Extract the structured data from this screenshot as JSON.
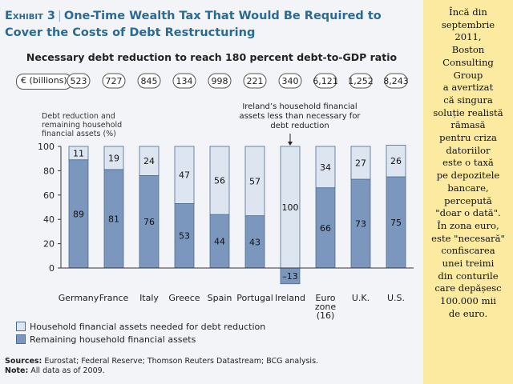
{
  "header": {
    "exhibit_label": "Exhibit 3",
    "title": "One-Time Wealth Tax That Would Be Required to Cover the Costs of Debt Restructuring"
  },
  "chart_data": {
    "type": "bar",
    "stacked": true,
    "title": "Necessary debt reduction to reach 180 percent debt-to-GDP ratio",
    "ylabel": "Debt reduction and remaining household financial assets (%)",
    "ylim": [
      -13,
      100
    ],
    "yticks": [
      "0",
      "20",
      "40",
      "60",
      "80",
      "100"
    ],
    "debt_row_label": "€ (billions)",
    "categories": [
      "Germany",
      "France",
      "Italy",
      "Greece",
      "Spain",
      "Portugal",
      "Ireland",
      "Euro zone (16)",
      "U.K.",
      "U.S."
    ],
    "category_labels": [
      [
        "Germany"
      ],
      [
        "France"
      ],
      [
        "Italy"
      ],
      [
        "Greece"
      ],
      [
        "Spain"
      ],
      [
        "Portugal"
      ],
      [
        "Ireland"
      ],
      [
        "Euro",
        "zone",
        "(16)"
      ],
      [
        "U.K."
      ],
      [
        "U.S."
      ]
    ],
    "debt_reduction_billions": [
      "523",
      "727",
      "845",
      "134",
      "998",
      "221",
      "340",
      "6,121",
      "1,252",
      "8,243"
    ],
    "series": [
      {
        "name": "Remaining household financial assets",
        "values": [
          89,
          81,
          76,
          53,
          44,
          43,
          -13,
          66,
          73,
          75
        ],
        "labels": [
          "89",
          "81",
          "76",
          "53",
          "44",
          "43",
          "–13",
          "66",
          "73",
          "75"
        ],
        "color": "#7b97bd"
      },
      {
        "name": "Household financial assets needed for debt reduction",
        "values": [
          11,
          19,
          24,
          47,
          56,
          57,
          100,
          34,
          27,
          26
        ],
        "labels": [
          "11",
          "19",
          "24",
          "47",
          "56",
          "57",
          "100",
          "34",
          "27",
          "26"
        ],
        "color": "#dde5f1"
      }
    ],
    "annotation": "Ireland’s household financial assets less than necessary for debt reduction",
    "legend_position": "bottom-left",
    "grid": false
  },
  "sources": {
    "sources_label": "Sources:",
    "sources_text": "Eurostat; Federal Reserve; Thomson Reuters Datastream; BCG analysis.",
    "note_label": "Note:",
    "note_text": "All data as of 2009."
  },
  "side_note": {
    "text": "Încă din septembrie 2011, Boston Consulting Group a avertizat că singura soluție realistă rămasă pentru criza datoriilor este o taxă pe depozitele bancare, percepută \"doar o dată\". În zona euro, este \"necesară\" confiscarea unei treimi din conturile care depășesc 100.000 mii de euro.",
    "lines": [
      "Încă din",
      "septembrie",
      "2011,",
      "Boston",
      "Consulting",
      "Group",
      "a avertizat",
      "că singura",
      "soluție realistă",
      "rămasă",
      "pentru criza",
      "datoriilor",
      "este o taxă",
      "pe depozitele",
      "bancare,",
      "percepută",
      "\"doar o dată\".",
      "În zona euro,",
      "este \"necesară\"",
      "confiscarea",
      "unei treimi",
      "din conturile",
      "care depășesc",
      "100.000 mii",
      "de euro."
    ]
  }
}
